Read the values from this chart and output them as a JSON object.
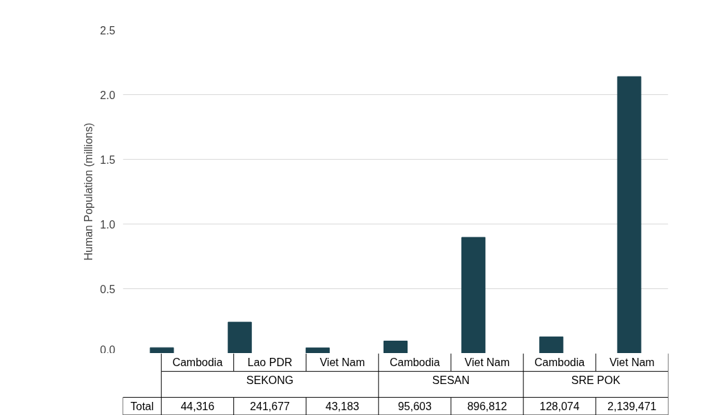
{
  "chart_data": {
    "type": "bar",
    "ylabel": "Human Population (millions)",
    "categories": [
      "Cambodia",
      "Lao PDR",
      "Viet Nam",
      "Cambodia",
      "Viet Nam",
      "Cambodia",
      "Viet Nam"
    ],
    "values": [
      0.044316,
      0.241677,
      0.043183,
      0.095603,
      0.896812,
      0.128074,
      2.139471
    ],
    "color": "#1b4350",
    "ylim": [
      0,
      2.5
    ],
    "yticks": [
      {
        "value": 0,
        "label": "0.0"
      },
      {
        "value": 0.5,
        "label": "0.5"
      },
      {
        "value": 1,
        "label": "1.0"
      },
      {
        "value": 1.5,
        "label": "1.5"
      },
      {
        "value": 2,
        "label": "2.0"
      },
      {
        "value": 2.5,
        "label": "2.5"
      }
    ],
    "grid": "y",
    "annotations": [
      "SEKONG",
      "SESAN",
      "SRE POK",
      "Total",
      "44,316",
      "241,677",
      "43,183",
      "95,603",
      "896,812",
      "128,074",
      "2,139,471"
    ]
  }
}
